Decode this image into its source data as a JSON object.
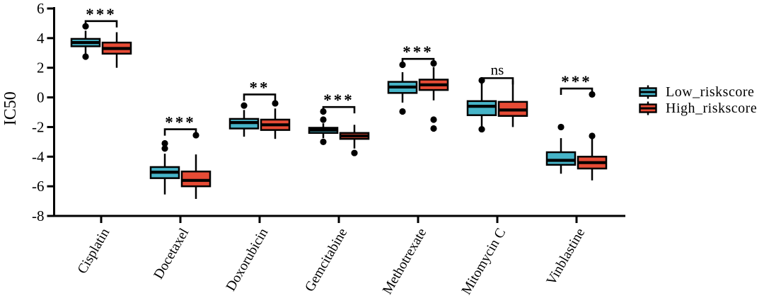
{
  "page": {
    "background": "#ffffff"
  },
  "chart_data": {
    "type": "boxplot",
    "title": "",
    "xlabel": "",
    "ylabel": "IC50",
    "ylim": [
      -8,
      6
    ],
    "yticks": [
      6,
      4,
      2,
      0,
      -2,
      -4,
      -6,
      -8
    ],
    "grid": false,
    "axis_color": "#000000",
    "categories": [
      "Cisplatin",
      "Docetaxel",
      "Doxorubicin",
      "Gemcitabine",
      "Methotrexate",
      "Mitomycin C",
      "Vinblastine"
    ],
    "significance": [
      "***",
      "***",
      "**",
      "***",
      "***",
      "ns",
      "***"
    ],
    "significance_bracket_y": [
      5.15,
      -2.15,
      0.2,
      -0.65,
      2.6,
      1.3,
      0.6
    ],
    "legend": {
      "position": "right",
      "items": [
        {
          "label": "Low_riskscore",
          "color": "#46B4C8"
        },
        {
          "label": "High_riskscore",
          "color": "#E64B35"
        }
      ]
    },
    "series": [
      {
        "name": "Low_riskscore",
        "color": "#46B4C8",
        "boxes": [
          {
            "low": 2.95,
            "q1": 3.45,
            "median": 3.7,
            "q3": 3.95,
            "high": 4.5,
            "outliers": [
              4.8,
              2.75
            ]
          },
          {
            "low": -6.55,
            "q1": -5.45,
            "median": -5.05,
            "q3": -4.7,
            "high": -3.8,
            "outliers": [
              -3.1,
              -3.45
            ]
          },
          {
            "low": -2.65,
            "q1": -2.1,
            "median": -1.7,
            "q3": -1.45,
            "high": -0.85,
            "outliers": [
              -0.55
            ]
          },
          {
            "low": -2.75,
            "q1": -2.4,
            "median": -2.2,
            "q3": -2.05,
            "high": -1.75,
            "outliers": [
              -0.95,
              -1.5,
              -3.0
            ]
          },
          {
            "low": -0.35,
            "q1": 0.3,
            "median": 0.7,
            "q3": 1.05,
            "high": 1.7,
            "outliers": [
              2.2,
              -0.95
            ]
          },
          {
            "low": -1.95,
            "q1": -1.2,
            "median": -0.6,
            "q3": -0.25,
            "high": 1.0,
            "outliers": [
              1.15,
              -2.15
            ]
          },
          {
            "low": -5.15,
            "q1": -4.55,
            "median": -4.25,
            "q3": -3.7,
            "high": -2.75,
            "outliers": [
              -2.0
            ]
          }
        ]
      },
      {
        "name": "High_riskscore",
        "color": "#E64B35",
        "boxes": [
          {
            "low": 2.0,
            "q1": 2.95,
            "median": 3.3,
            "q3": 3.7,
            "high": 4.4,
            "outliers": []
          },
          {
            "low": -6.85,
            "q1": -6.0,
            "median": -5.6,
            "q3": -5.0,
            "high": -3.85,
            "outliers": [
              -2.55
            ]
          },
          {
            "low": -2.8,
            "q1": -2.2,
            "median": -1.85,
            "q3": -1.5,
            "high": -0.75,
            "outliers": [
              -0.4
            ]
          },
          {
            "low": -3.45,
            "q1": -2.8,
            "median": -2.6,
            "q3": -2.4,
            "high": -1.85,
            "outliers": [
              -3.75
            ]
          },
          {
            "low": -0.2,
            "q1": 0.5,
            "median": 0.85,
            "q3": 1.2,
            "high": 2.05,
            "outliers": [
              2.3,
              -1.5,
              -2.1
            ]
          },
          {
            "low": -2.0,
            "q1": -1.25,
            "median": -0.85,
            "q3": -0.3,
            "high": 1.15,
            "outliers": []
          },
          {
            "low": -5.6,
            "q1": -4.8,
            "median": -4.4,
            "q3": -4.0,
            "high": -2.8,
            "outliers": [
              -2.6,
              0.2
            ]
          }
        ]
      }
    ]
  }
}
